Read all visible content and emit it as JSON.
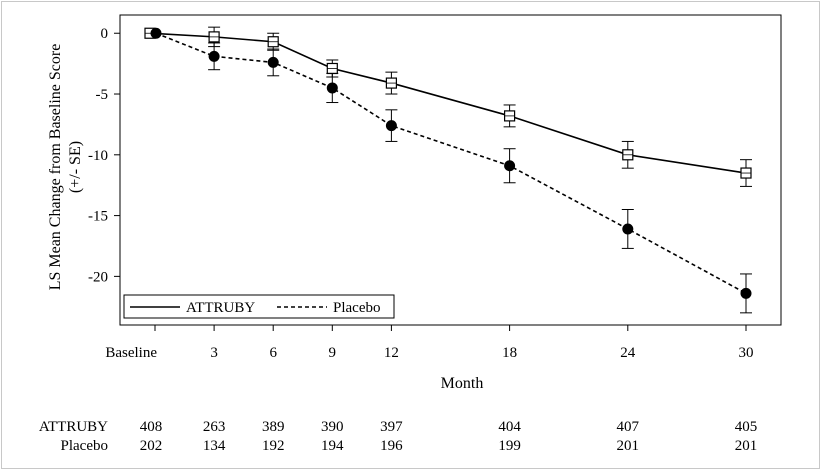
{
  "chart_data": {
    "type": "line",
    "title": "",
    "xlabel": "Month",
    "ylabel": "LS Mean Change from Baseline Score",
    "ylabel_sub": "(+/- SE)",
    "x_ticks": [
      "Baseline",
      "3",
      "6",
      "9",
      "12",
      "18",
      "24",
      "30"
    ],
    "x_values": [
      0,
      3,
      6,
      9,
      12,
      18,
      24,
      30
    ],
    "y_ticks": [
      0,
      -5,
      -10,
      -15,
      -20
    ],
    "ylim": [
      -24,
      1.5
    ],
    "legend_position": "bottom-left",
    "series": [
      {
        "name": "ATTRUBY",
        "line_style": "solid",
        "marker": "open-square",
        "x": [
          0,
          3,
          6,
          9,
          12,
          18,
          24,
          30
        ],
        "values": [
          0,
          -0.3,
          -0.7,
          -2.9,
          -4.1,
          -6.8,
          -10.0,
          -11.5
        ],
        "se": [
          0,
          0.8,
          0.7,
          0.7,
          0.9,
          0.9,
          1.1,
          1.1
        ],
        "at_risk": [
          "408",
          "263",
          "389",
          "390",
          "397",
          "404",
          "407",
          "405"
        ]
      },
      {
        "name": "Placebo",
        "line_style": "dashed",
        "marker": "filled-circle",
        "x": [
          0,
          3,
          6,
          9,
          12,
          18,
          24,
          30
        ],
        "values": [
          0,
          -1.9,
          -2.4,
          -4.5,
          -7.6,
          -10.9,
          -16.1,
          -21.4
        ],
        "se": [
          0,
          1.1,
          1.1,
          1.2,
          1.3,
          1.4,
          1.6,
          1.6
        ],
        "at_risk": [
          "202",
          "134",
          "192",
          "194",
          "196",
          "199",
          "201",
          "201"
        ]
      }
    ],
    "at_risk_labels": [
      "ATTRUBY",
      "Placebo"
    ]
  }
}
